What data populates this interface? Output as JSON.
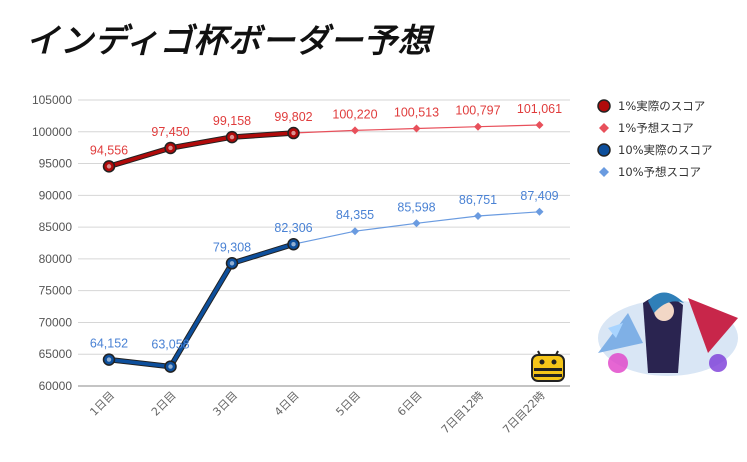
{
  "title": "インディゴ杯ボーダー予想",
  "chart_data": {
    "type": "line",
    "title": "インディゴ杯ボーダー予想",
    "categories": [
      "1日目",
      "2日目",
      "3日目",
      "4日目",
      "5日目",
      "6日目",
      "7日目12時",
      "7日目22時"
    ],
    "ylim": [
      60000,
      105000
    ],
    "yticks": [
      60000,
      65000,
      70000,
      75000,
      80000,
      85000,
      90000,
      95000,
      100000,
      105000
    ],
    "grid": true,
    "legend_position": "right",
    "series": [
      {
        "name": "1%実際のスコア",
        "values": [
          94556,
          97450,
          99158,
          99802,
          null,
          null,
          null,
          null
        ],
        "labels": [
          "94,556",
          "97,450",
          "99,158",
          "99,802",
          "",
          "",
          "",
          ""
        ],
        "color": "#b00a0a",
        "style": "actual"
      },
      {
        "name": "1%予想スコア",
        "values": [
          null,
          null,
          null,
          99802,
          100220,
          100513,
          100797,
          101061
        ],
        "labels": [
          "",
          "",
          "",
          "",
          "100,220",
          "100,513",
          "100,797",
          "101,061"
        ],
        "color": "#e8505b",
        "style": "forecast"
      },
      {
        "name": "10%実際のスコア",
        "values": [
          64152,
          63058,
          79308,
          82306,
          null,
          null,
          null,
          null
        ],
        "labels": [
          "64,152",
          "63,058",
          "79,308",
          "82,306",
          "",
          "",
          "",
          ""
        ],
        "color": "#0d4f9c",
        "style": "actual"
      },
      {
        "name": "10%予想スコア",
        "values": [
          null,
          null,
          null,
          82306,
          84355,
          85598,
          86751,
          87409
        ],
        "labels": [
          "",
          "",
          "",
          "",
          "84,355",
          "85,598",
          "86,751",
          "87,409"
        ],
        "color": "#6a9be0",
        "style": "forecast"
      }
    ],
    "label_colors": {
      "red": "#e03c3c",
      "blue": "#4a82d4"
    }
  }
}
